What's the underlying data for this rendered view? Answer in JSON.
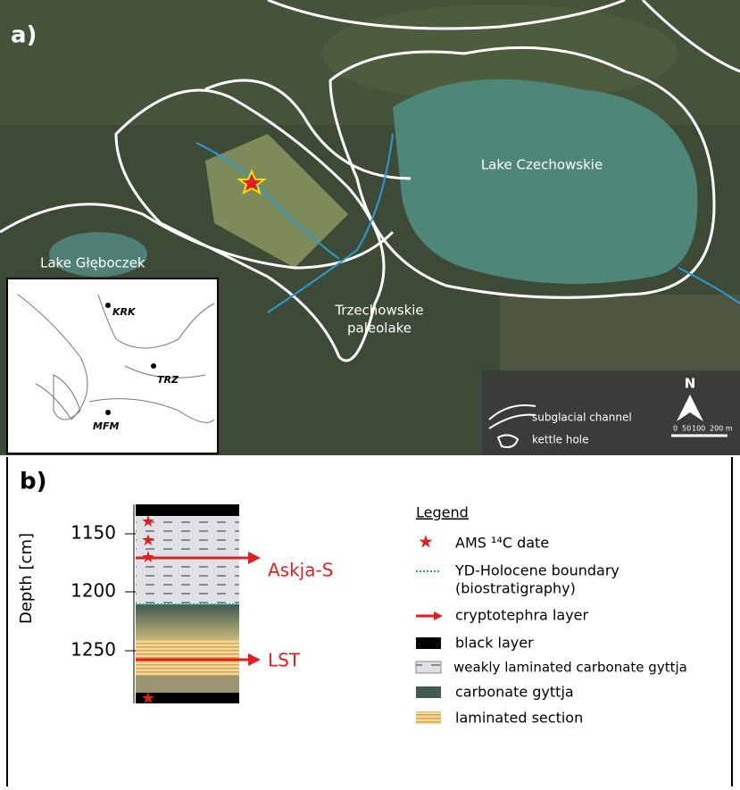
{
  "panel_a": {
    "label": "a)",
    "places": {
      "lake_czechowskie": "Lake Czechowskie",
      "lake_gleboczek": "Lake Głęboczek",
      "paleolake_1": "Trzechowskie",
      "paleolake_2": "paleolake"
    },
    "inset_sites": [
      "KRK",
      "TRZ",
      "MFM"
    ],
    "legend": [
      "subglacial channel",
      "kettle hole"
    ],
    "north": "N",
    "scale": [
      "0",
      "50",
      "100",
      "200 m"
    ]
  },
  "panel_b": {
    "label": "b)",
    "axis_label": "Depth [cm]",
    "ticks": [
      "1150",
      "1200",
      "1250"
    ],
    "layers": [
      "Askja-S",
      "LST"
    ],
    "legend": {
      "title": "Legend",
      "items": [
        "AMS ¹⁴C date",
        "YD-Holocene boundary",
        "(biostratigraphy)",
        "cryptotephra layer",
        "black layer",
        "weakly laminated carbonate gyttja",
        "carbonate gyttja",
        "laminated section"
      ]
    }
  }
}
